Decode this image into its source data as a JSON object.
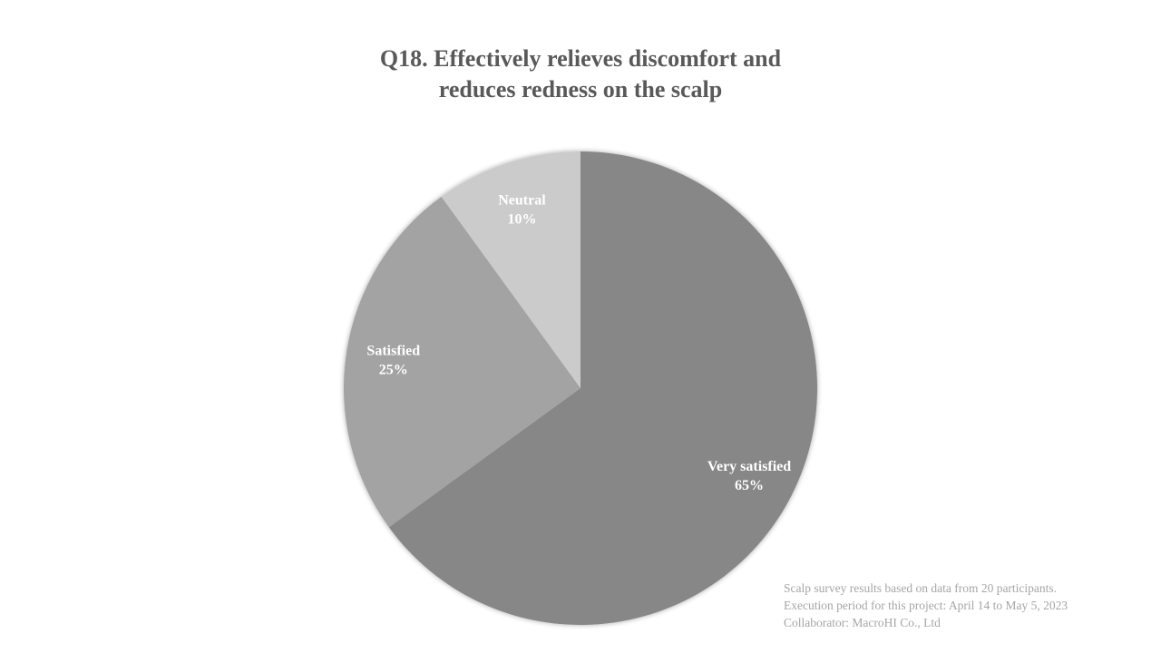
{
  "chart_data": {
    "type": "pie",
    "title": "Q18. Effectively relieves discomfort and reduces redness on the scalp",
    "title_lines": [
      "Q18. Effectively relieves discomfort and",
      "reduces redness on the scalp"
    ],
    "slices": [
      {
        "label": "Very satisfied",
        "value": 65,
        "value_label": "65%",
        "color": "#878787"
      },
      {
        "label": "Satisfied",
        "value": 25,
        "value_label": "25%",
        "color": "#a3a3a3"
      },
      {
        "label": "Neutral",
        "value": 10,
        "value_label": "10%",
        "color": "#cbcbcb"
      }
    ],
    "start": "12 o'clock, clockwise",
    "legend": "none (labels inside slices)"
  },
  "footnote": {
    "line1": "Scalp survey results based on data from 20 participants.",
    "line2": "Execution period for this project: April 14 to May 5, 2023",
    "line3": "Collaborator: MacroHI Co., Ltd"
  }
}
